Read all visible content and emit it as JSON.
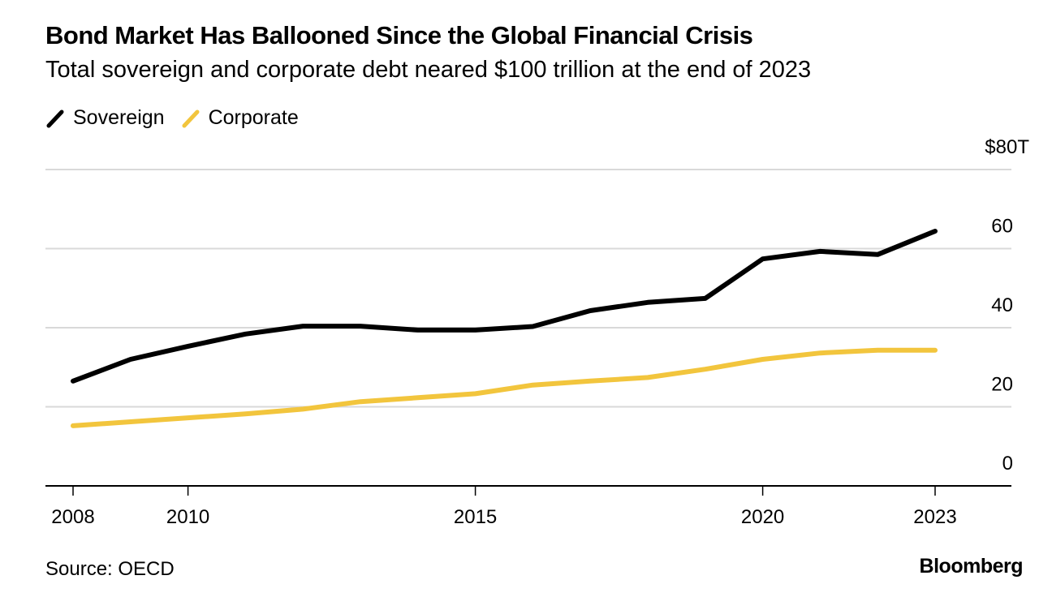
{
  "header": {
    "title": "Bond Market Has Ballooned Since the Global Financial Crisis",
    "subtitle": "Total sovereign and corporate debt neared $100 trillion at the end of 2023"
  },
  "footer": {
    "source": "Source: OECD",
    "brand": "Bloomberg"
  },
  "chart_data": {
    "type": "line",
    "title": "Bond Market Has Ballooned Since the Global Financial Crisis",
    "subtitle": "Total sovereign and corporate debt neared $100 trillion at the end of 2023",
    "xlabel": "",
    "ylabel": "",
    "x": [
      2008,
      2009,
      2010,
      2011,
      2012,
      2013,
      2014,
      2015,
      2016,
      2017,
      2018,
      2019,
      2020,
      2021,
      2022,
      2023
    ],
    "xlim": [
      2008,
      2023
    ],
    "x_ticks": [
      2008,
      2010,
      2015,
      2020,
      2023
    ],
    "x_tick_labels": [
      "2008",
      "2010",
      "2015",
      "2020",
      "2023"
    ],
    "ylim": [
      0,
      80
    ],
    "y_ticks": [
      0,
      20,
      40,
      60,
      80
    ],
    "y_tick_labels": [
      "0",
      "20",
      "40",
      "60",
      "$80T"
    ],
    "y_axis_position": "right",
    "grid": true,
    "legend_position": "top-left",
    "series": [
      {
        "name": "Sovereign",
        "color": "#000000",
        "values": [
          26.5,
          32,
          35.3,
          38.4,
          40.4,
          40.4,
          39.4,
          39.4,
          40.3,
          44.3,
          46.4,
          47.4,
          57.4,
          59.3,
          58.5,
          64.4
        ]
      },
      {
        "name": "Corporate",
        "color": "#F2C53D",
        "values": [
          15.2,
          16.2,
          17.2,
          18.2,
          19.4,
          21.3,
          22.3,
          23.3,
          25.5,
          26.5,
          27.4,
          29.5,
          32.0,
          33.6,
          34.3,
          34.3
        ]
      }
    ],
    "source": "Source: OECD"
  }
}
